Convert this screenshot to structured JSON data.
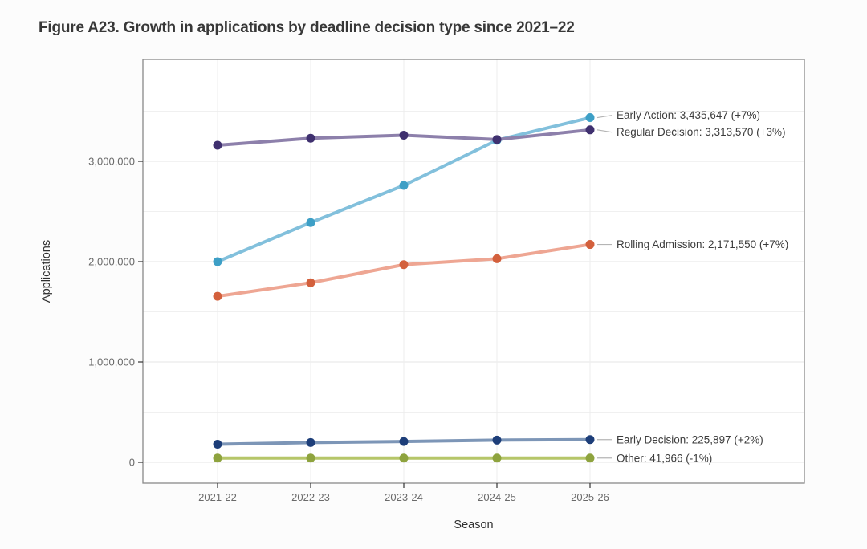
{
  "figure": {
    "title": "Figure A23. Growth in applications by deadline decision type since 2021–22"
  },
  "chart_data": {
    "type": "line",
    "title": "Figure A23. Growth in applications by deadline decision type since 2021–22",
    "xlabel": "Season",
    "ylabel": "Applications",
    "categories": [
      "2021-22",
      "2022-23",
      "2023-24",
      "2024-25",
      "2025-26"
    ],
    "y_ticks": {
      "values": [
        0,
        1000000,
        2000000,
        3000000
      ],
      "labels": [
        "0",
        "1,000,000",
        "2,000,000",
        "3,000,000"
      ]
    },
    "minor_grid_step": 500000,
    "ylim": [
      -260000,
      4040000
    ],
    "grid": true,
    "legend_position": "inline-annotations-right",
    "series": [
      {
        "name": "Early Action",
        "values": [
          2000000,
          2390000,
          2760000,
          3210000,
          3435647
        ],
        "final_value": 3435647,
        "yoy_change": "+7%",
        "annotation": "Early Action: 3,435,647 (+7%)",
        "line_color": "#82c0dc",
        "point_color": "#3d9fc6"
      },
      {
        "name": "Regular Decision",
        "values": [
          3160000,
          3230000,
          3260000,
          3217000,
          3313570
        ],
        "final_value": 3313570,
        "yoy_change": "+3%",
        "annotation": "Regular Decision: 3,313,570 (+3%)",
        "line_color": "#8d80ab",
        "point_color": "#3f306f"
      },
      {
        "name": "Rolling Admission",
        "values": [
          1655000,
          1790000,
          1970000,
          2029000,
          2171550
        ],
        "final_value": 2171550,
        "yoy_change": "+7%",
        "annotation": "Rolling Admission: 2,171,550 (+7%)",
        "line_color": "#eea693",
        "point_color": "#d3603c"
      },
      {
        "name": "Early Decision",
        "values": [
          180000,
          197000,
          207000,
          221000,
          225897
        ],
        "final_value": 225897,
        "yoy_change": "+2%",
        "annotation": "Early Decision: 225,897 (+2%)",
        "line_color": "#7d96b7",
        "point_color": "#1d3e79"
      },
      {
        "name": "Other",
        "values": [
          42000,
          42300,
          42300,
          42390,
          41966
        ],
        "final_value": 41966,
        "yoy_change": "-1%",
        "annotation": "Other: 41,966 (-1%)",
        "line_color": "#b6c669",
        "point_color": "#8ea33e"
      }
    ]
  },
  "colors": {
    "background": "#fcfcfc",
    "panel_bg": "#ffffff",
    "panel_border": "#898989",
    "grid_major": "#e5e5e5",
    "grid_minor": "#f0f0f0",
    "grid_vertical": "#ededed",
    "tick_mark": "#333333",
    "tick_text": "#6a6a6a",
    "axis_title_text": "#303030",
    "annotation_text": "#3c3c3c",
    "leader_line": "#b5b5b5",
    "title_text": "#383838"
  }
}
